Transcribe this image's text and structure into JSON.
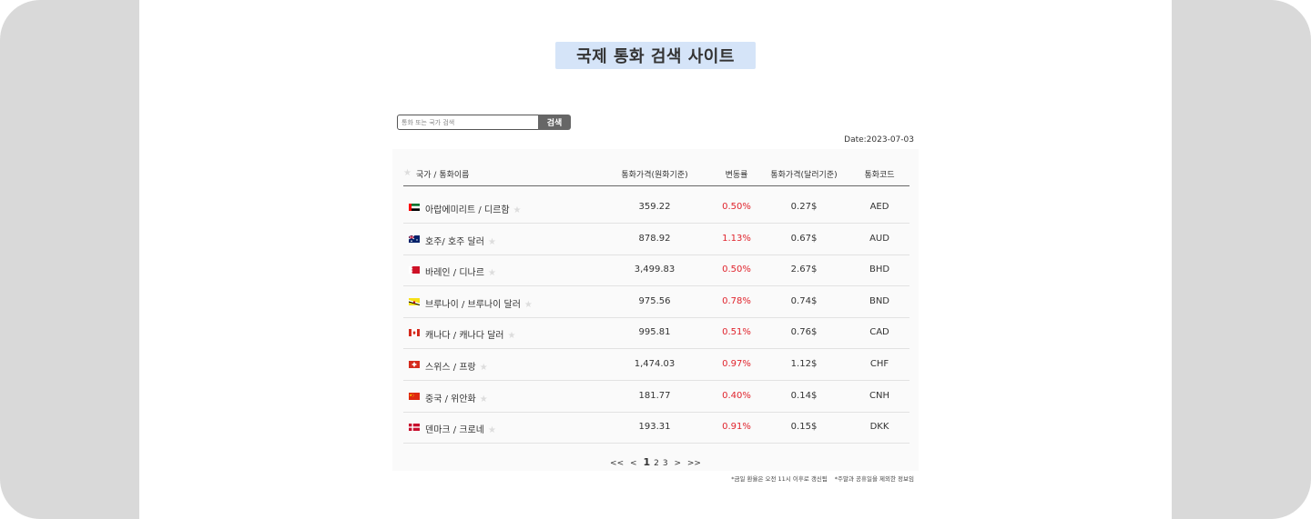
{
  "title": "국제 통화 검색 사이트",
  "search": {
    "placeholder": "통화 또는 국가 검색",
    "button_label": "검색"
  },
  "date_label": "Date:2023-07-03",
  "table": {
    "headers": {
      "name": "국가 / 통화이름",
      "krw_price": "통화가격(원화기준)",
      "change": "변동률",
      "usd_price": "통화가격(달러기준)",
      "code": "통화코드"
    },
    "rows": [
      {
        "flag": "uae-flag-icon",
        "name": "아랍에미리트 / 디르함",
        "krw": "359.22",
        "change": "0.50%",
        "usd": "0.27$",
        "code": "AED"
      },
      {
        "flag": "australia-flag-icon",
        "name": "호주/ 호주 달러",
        "krw": "878.92",
        "change": "1.13%",
        "usd": "0.67$",
        "code": "AUD"
      },
      {
        "flag": "bahrain-flag-icon",
        "name": "바레인 / 디나르",
        "krw": "3,499.83",
        "change": "0.50%",
        "usd": "2.67$",
        "code": "BHD"
      },
      {
        "flag": "brunei-flag-icon",
        "name": "브루나이 / 브루나이 달러",
        "krw": "975.56",
        "change": "0.78%",
        "usd": "0.74$",
        "code": "BND"
      },
      {
        "flag": "canada-flag-icon",
        "name": "캐나다 / 캐나다 달러",
        "krw": "995.81",
        "change": "0.51%",
        "usd": "0.76$",
        "code": "CAD"
      },
      {
        "flag": "switzerland-flag-icon",
        "name": "스위스 / 프랑",
        "krw": "1,474.03",
        "change": "0.97%",
        "usd": "1.12$",
        "code": "CHF"
      },
      {
        "flag": "china-flag-icon",
        "name": "중국 / 위안화",
        "krw": "181.77",
        "change": "0.40%",
        "usd": "0.14$",
        "code": "CNH"
      },
      {
        "flag": "denmark-flag-icon",
        "name": "덴마크 / 크로네",
        "krw": "193.31",
        "change": "0.91%",
        "usd": "0.15$",
        "code": "DKK"
      }
    ]
  },
  "pagination": {
    "first": "<<",
    "prev": "<",
    "pages": [
      "1",
      "2",
      "3"
    ],
    "next": ">",
    "last": ">>",
    "current": "1"
  },
  "footnotes": [
    "*금일 환율은 오전 11시 이후로 갱신됨",
    "*주말과 공휴일을 제외한 정보임"
  ],
  "colors": {
    "title_bg": "#d5e4f8",
    "change_red": "#e0242d",
    "button_bg": "#666666"
  },
  "star_icon": "☆"
}
